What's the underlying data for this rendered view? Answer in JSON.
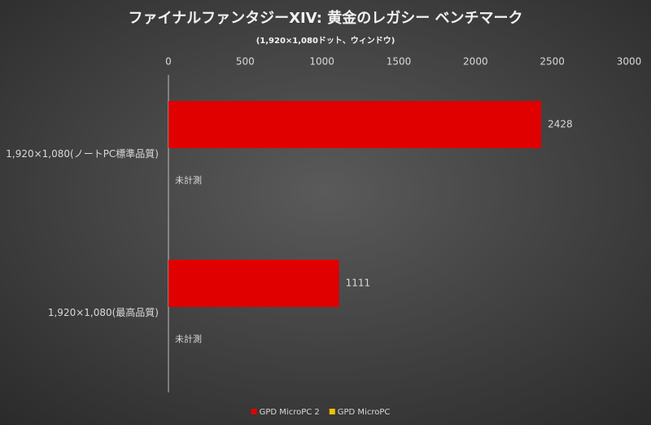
{
  "chart_data": {
    "type": "hbar",
    "title": "ファイナルファンタジーXIV: 黄金のレガシー ベンチマーク",
    "subtitle": "(1,920×1,080ドット、ウィンドウ)",
    "categories": [
      "1,920×1,080(ノートPC標準品質)",
      "1,920×1,080(最高品質)"
    ],
    "series": [
      {
        "name": "GPD MicroPC 2",
        "color": "#e00000",
        "values": [
          2428,
          1111
        ]
      },
      {
        "name": "GPD MicroPC",
        "color": "#f2c200",
        "values": [
          null,
          null
        ],
        "value_labels": [
          "未計測",
          "未計測"
        ]
      }
    ],
    "xlim": [
      0,
      3000
    ],
    "xticks": [
      0,
      500,
      1000,
      1500,
      2000,
      2500,
      3000
    ],
    "grid": false,
    "legend": "bottom"
  }
}
